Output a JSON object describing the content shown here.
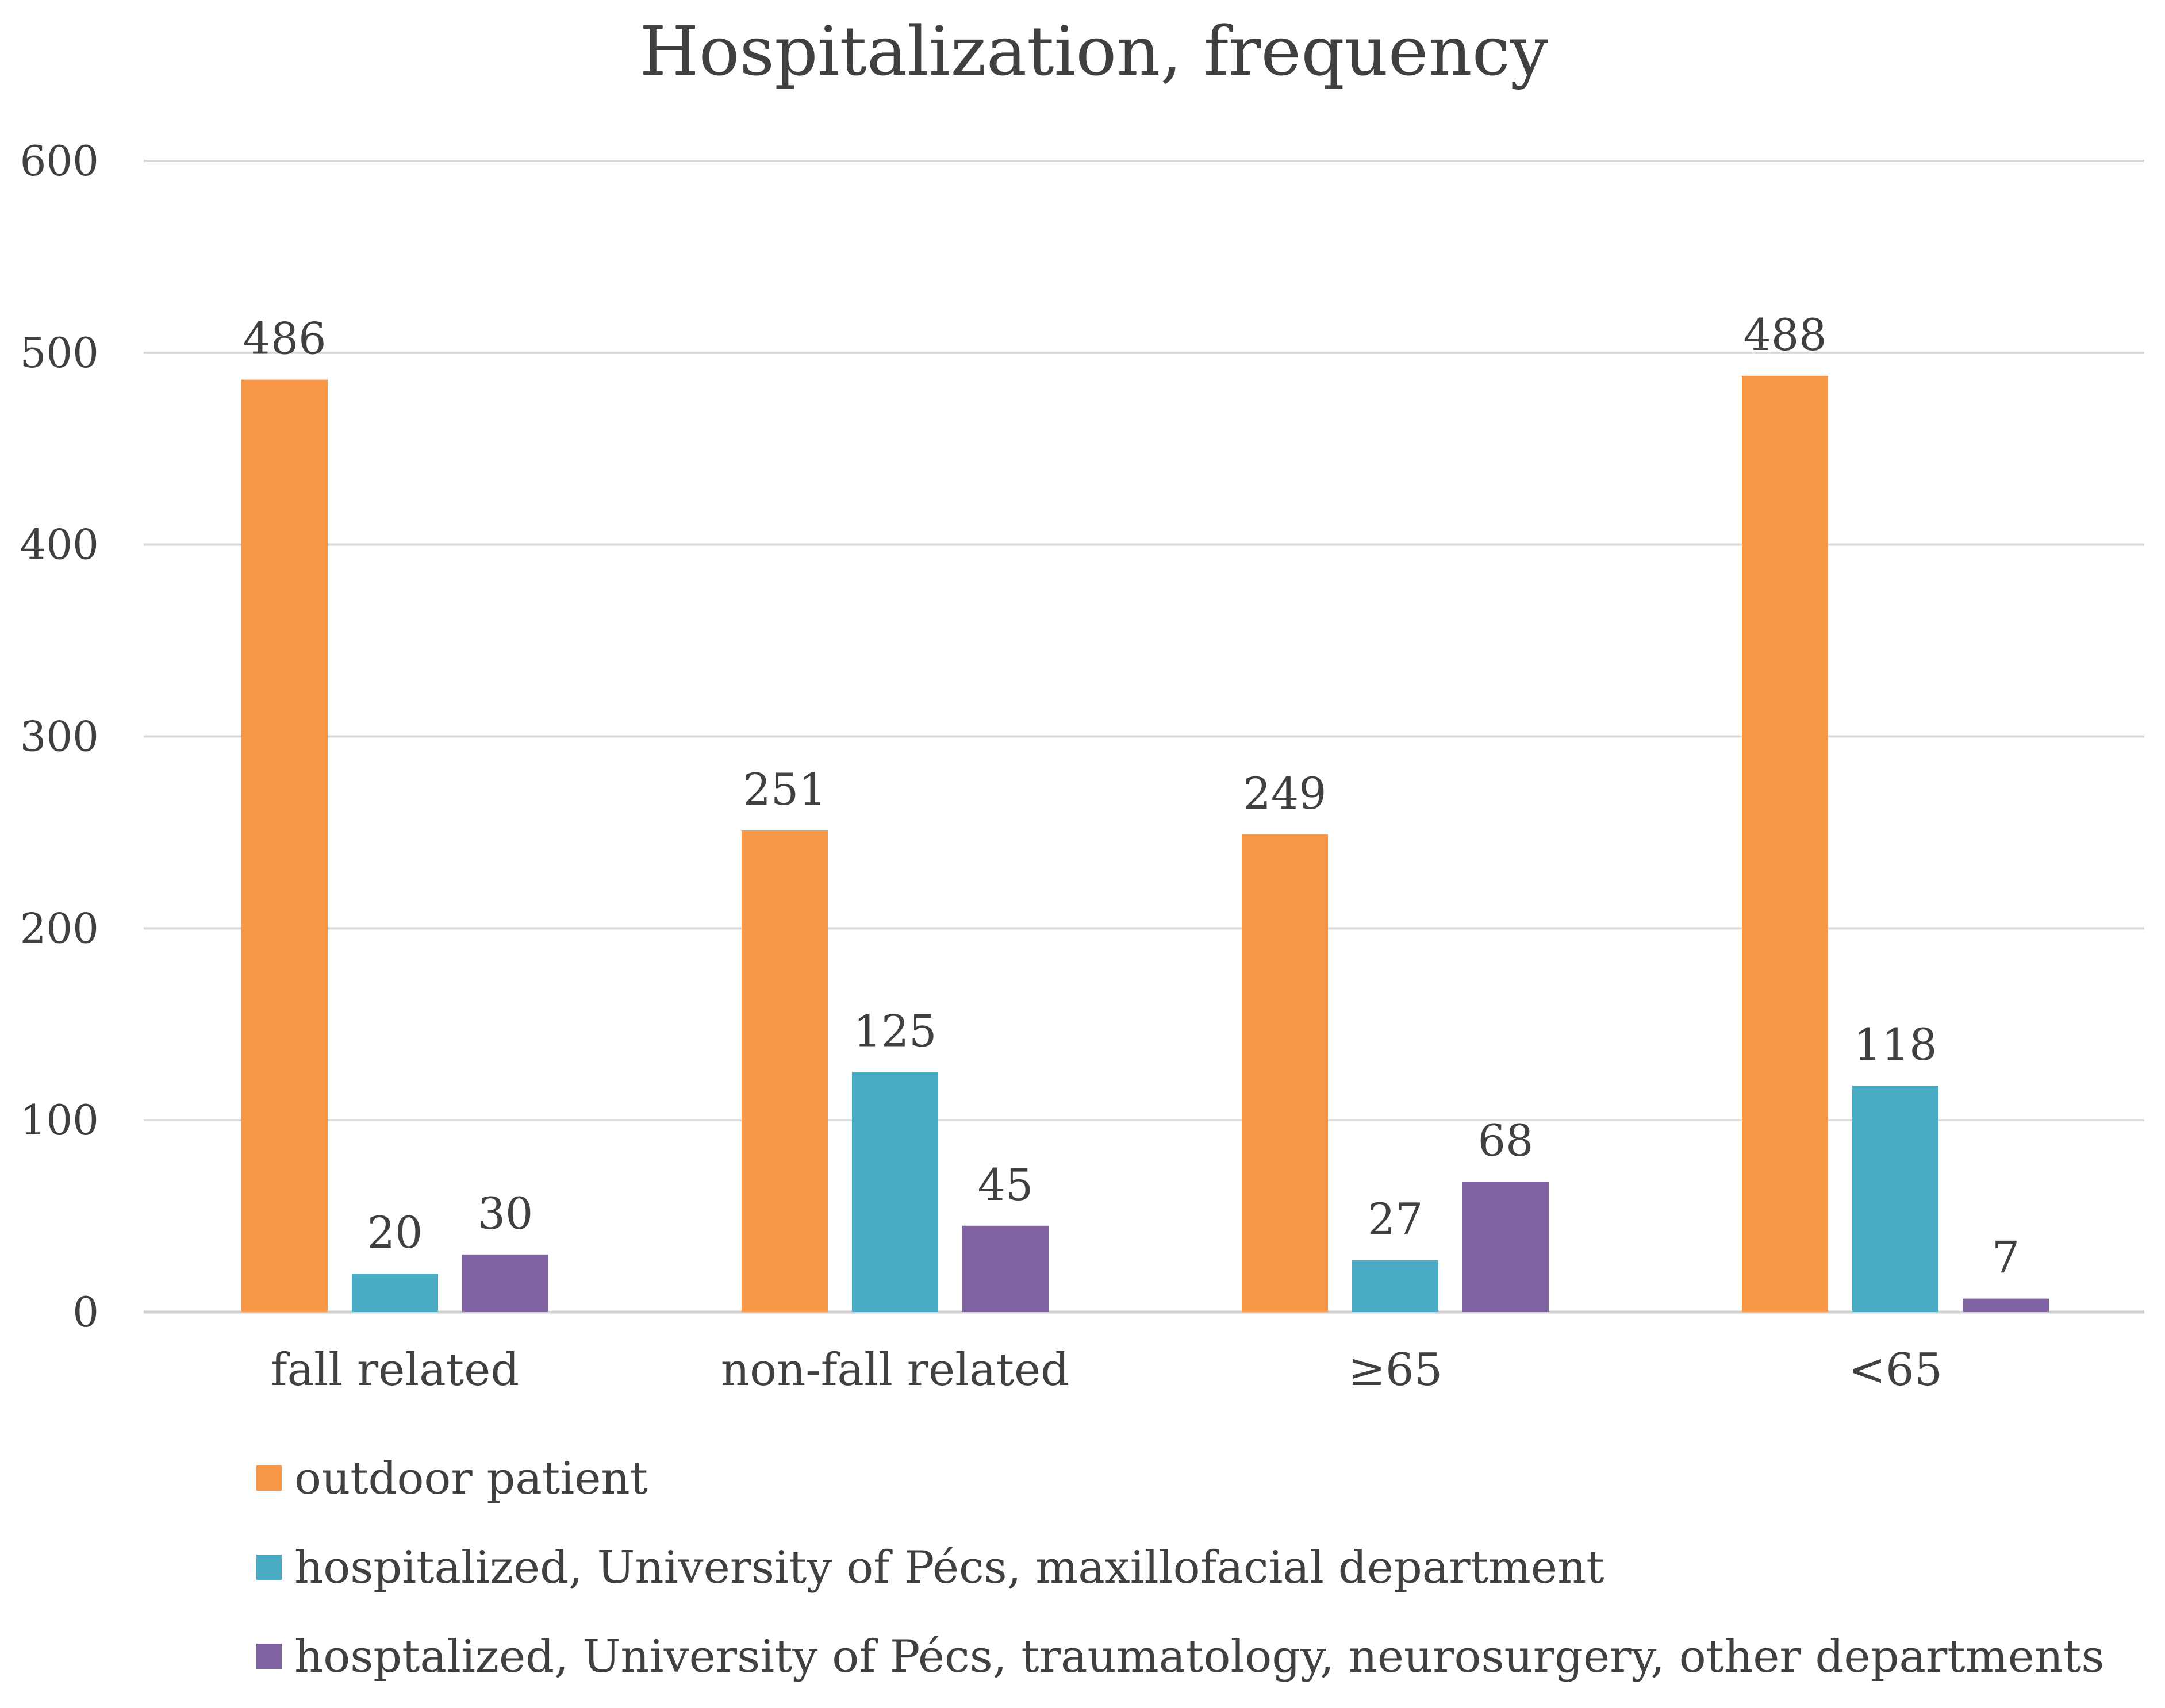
{
  "chart_data": {
    "type": "bar",
    "title": "Hospitalization, frequency",
    "xlabel": "",
    "ylabel": "",
    "ylim": [
      0,
      600
    ],
    "yticks": [
      "0",
      "100",
      "200",
      "300",
      "400",
      "500",
      "600"
    ],
    "grid": true,
    "legend_position": "bottom-left",
    "categories": [
      "fall related",
      "non-fall related",
      "≥65",
      "<65"
    ],
    "series": [
      {
        "name": "outdoor patient",
        "color": "#F79646",
        "values": [
          486,
          251,
          249,
          488
        ]
      },
      {
        "name": "hospitalized, University of Pécs, maxillofacial department",
        "color": "#4BACC6",
        "values": [
          20,
          125,
          27,
          118
        ]
      },
      {
        "name": "hosptalized, University of Pécs, traumatology, neurosurgery, other departments",
        "color": "#8064A2",
        "values": [
          30,
          45,
          68,
          7
        ]
      }
    ]
  }
}
